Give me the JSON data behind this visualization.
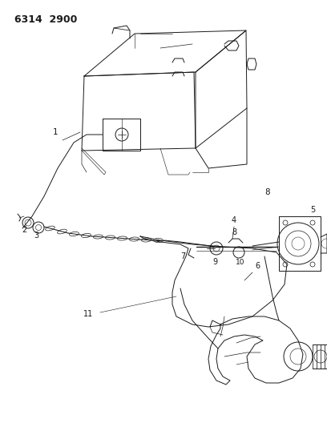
{
  "title": "6314  2900",
  "bg_color": "#ffffff",
  "line_color": "#1a1a1a",
  "title_fontsize": 9,
  "label_fontsize": 7.5
}
